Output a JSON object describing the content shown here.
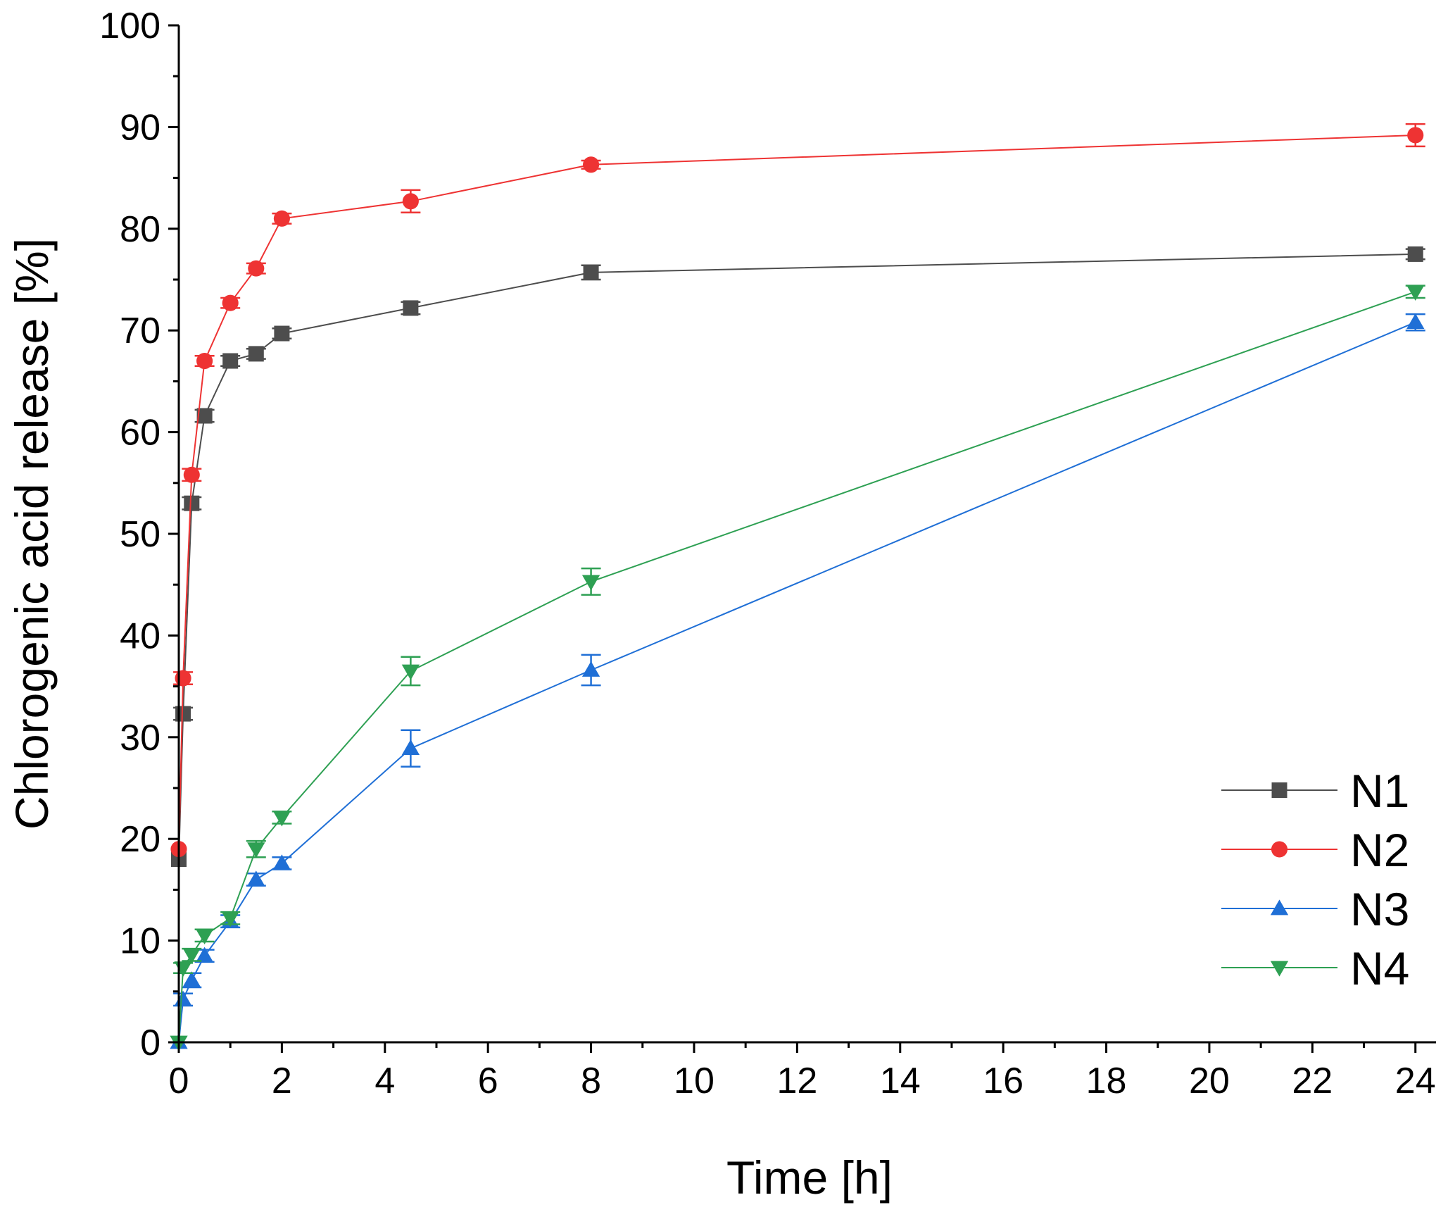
{
  "chart_data": {
    "type": "line",
    "title": "",
    "xlabel": "Time [h]",
    "ylabel": "Chlorogenic acid release [%]",
    "xlim": [
      0,
      24.4
    ],
    "ylim": [
      0,
      100
    ],
    "xticks": [
      0,
      2,
      4,
      6,
      8,
      10,
      12,
      14,
      16,
      18,
      20,
      22,
      24
    ],
    "yticks": [
      0,
      10,
      20,
      30,
      40,
      50,
      60,
      70,
      80,
      90,
      100
    ],
    "legend_position": "bottom-right",
    "series": [
      {
        "name": "N1",
        "color": "#4d4d4d",
        "marker": "square",
        "x": [
          0,
          0.083,
          0.25,
          0.5,
          1,
          1.5,
          2,
          4.5,
          8,
          24
        ],
        "y": [
          18,
          32.3,
          53,
          61.6,
          67,
          67.7,
          69.7,
          72.2,
          75.7,
          77.5
        ],
        "err": [
          0,
          0.6,
          0.6,
          0.6,
          0.5,
          0.5,
          0.5,
          0.6,
          0.7,
          0.5
        ]
      },
      {
        "name": "N2",
        "color": "#ee3333",
        "marker": "circle",
        "x": [
          0,
          0.083,
          0.25,
          0.5,
          1,
          1.5,
          2,
          4.5,
          8,
          24
        ],
        "y": [
          19,
          35.8,
          55.8,
          67,
          72.7,
          76.1,
          81,
          82.7,
          86.3,
          89.2
        ],
        "err": [
          0,
          0.6,
          0.6,
          0.5,
          0.5,
          0.5,
          0.5,
          1.1,
          0.4,
          1.1
        ]
      },
      {
        "name": "N3",
        "color": "#1f6fd6",
        "marker": "triangle-up",
        "x": [
          0,
          0.083,
          0.25,
          0.5,
          1,
          1.5,
          2,
          4.5,
          8,
          24
        ],
        "y": [
          0,
          4.2,
          6.1,
          8.5,
          11.9,
          16,
          17.6,
          28.9,
          36.6,
          70.8
        ],
        "err": [
          0,
          0.6,
          0.7,
          0.6,
          0.6,
          0.6,
          0.6,
          1.8,
          1.5,
          0.8
        ]
      },
      {
        "name": "N4",
        "color": "#2ea053",
        "marker": "triangle-down",
        "x": [
          0,
          0.083,
          0.25,
          0.5,
          1,
          1.5,
          2,
          4.5,
          8,
          24
        ],
        "y": [
          0,
          7.3,
          8.6,
          10.5,
          12.2,
          19,
          22.1,
          36.5,
          45.3,
          73.8
        ],
        "err": [
          0,
          0.5,
          0.6,
          0.6,
          0.6,
          0.8,
          0.6,
          1.4,
          1.3,
          0.6
        ]
      }
    ]
  }
}
